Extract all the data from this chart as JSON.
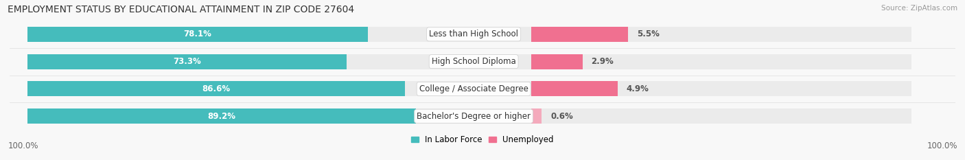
{
  "title": "EMPLOYMENT STATUS BY EDUCATIONAL ATTAINMENT IN ZIP CODE 27604",
  "source": "Source: ZipAtlas.com",
  "categories": [
    "Less than High School",
    "High School Diploma",
    "College / Associate Degree",
    "Bachelor's Degree or higher"
  ],
  "in_labor_force": [
    78.1,
    73.3,
    86.6,
    89.2
  ],
  "unemployed": [
    5.5,
    2.9,
    4.9,
    0.6
  ],
  "color_labor": "#45BCBC",
  "color_unemployed": "#F07090",
  "color_unemployed_light": "#F4AABC",
  "color_bg_bar": "#EBEBEB",
  "legend_labor": "In Labor Force",
  "legend_unemployed": "Unemployed",
  "left_axis_label": "100.0%",
  "right_axis_label": "100.0%",
  "title_fontsize": 10,
  "source_fontsize": 7.5,
  "bar_label_fontsize": 8.5,
  "category_fontsize": 8.5,
  "axis_label_fontsize": 8.5,
  "legend_fontsize": 8.5
}
